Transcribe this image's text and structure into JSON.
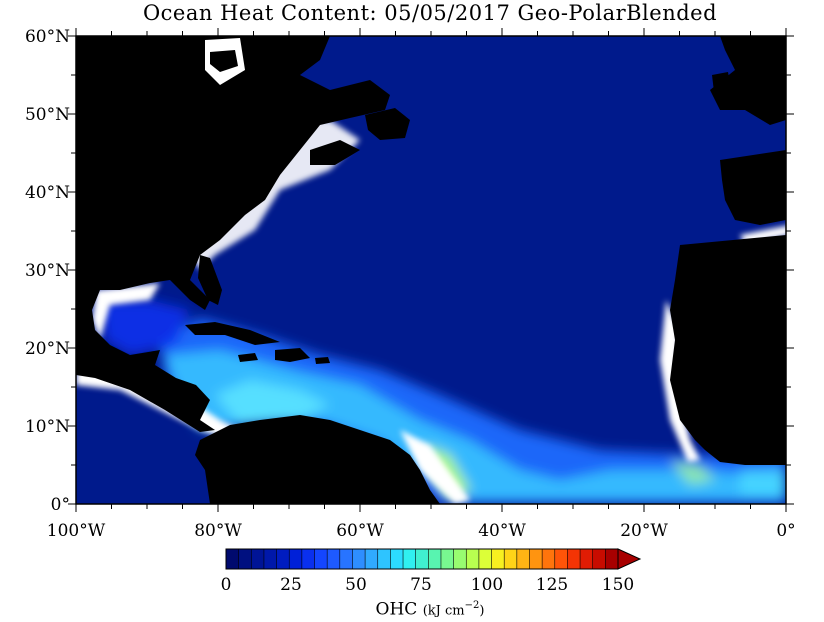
{
  "map": {
    "title": "Ocean Heat Content: 05/05/2017 Geo-PolarBlended",
    "lat_labels": [
      "0°",
      "10°N",
      "20°N",
      "30°N",
      "40°N",
      "50°N",
      "60°N"
    ],
    "lon_labels": [
      "100°W",
      "80°W",
      "60°W",
      "40°W",
      "20°W",
      "0°"
    ],
    "colors": {
      "land": "#000000",
      "low_ohc": "#001a8c",
      "mid_ohc": "#1e6cff",
      "high_ohc": "#3ad8ff",
      "peak_ohc": "#a8ffb0",
      "coast_gap": "#ffffff"
    }
  },
  "colorbar": {
    "tick_labels": [
      "0",
      "25",
      "50",
      "75",
      "100",
      "125",
      "150"
    ],
    "unit_main": "OHC",
    "unit_sub": "(kJ cm",
    "unit_exp": "−2",
    "unit_close": ")",
    "colors": [
      "#000a6e",
      "#001080",
      "#001496",
      "#0018aa",
      "#001cc0",
      "#0020d8",
      "#0a30ee",
      "#1446ff",
      "#1e5aff",
      "#2874ff",
      "#2e8eff",
      "#30aaff",
      "#2ec4ff",
      "#2cdcff",
      "#30f0f0",
      "#40f0d0",
      "#58f4b0",
      "#78f890",
      "#98fc70",
      "#b8ff50",
      "#dcff38",
      "#f8f020",
      "#ffd418",
      "#ffb414",
      "#ff9410",
      "#ff740c",
      "#ff5408",
      "#f43404",
      "#e01c04",
      "#c80c00",
      "#a80000"
    ]
  }
}
